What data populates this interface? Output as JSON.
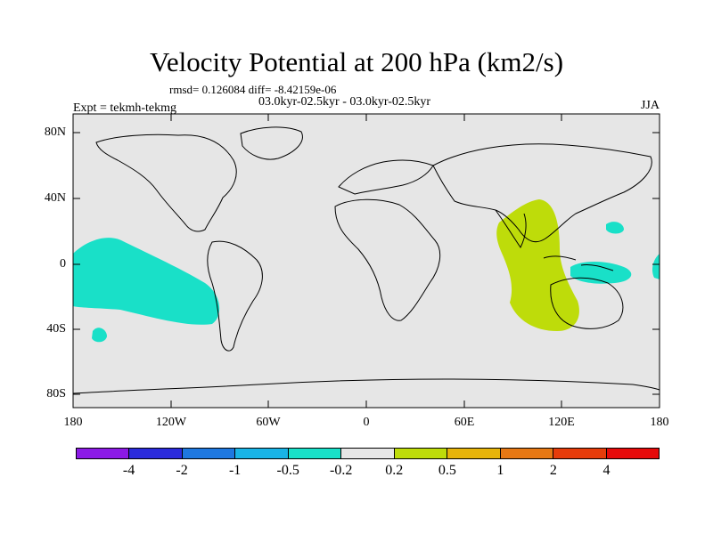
{
  "title": "Velocity Potential at 200 hPa (km2/s)",
  "stats": "rmsd= 0.126084 diff= -8.42159e-06",
  "experiments": "03.0kyr-02.5kyr - 03.0kyr-02.5kyr",
  "expt_label": "Expt = tekmh-tekmg",
  "season": "JJA",
  "lat_labels": [
    "80N",
    "40N",
    "0",
    "40S",
    "80S"
  ],
  "lon_labels": [
    "180",
    "120W",
    "60W",
    "0",
    "60E",
    "120E",
    "180"
  ],
  "colorbar": {
    "colors": [
      "#8c1ae6",
      "#2b2bdc",
      "#1e78e0",
      "#19b4e6",
      "#19e0c8",
      "#e6e6e6",
      "#bedc0a",
      "#e6b40a",
      "#e67814",
      "#e63c0a",
      "#e60a0a"
    ],
    "labels": [
      "-4",
      "-2",
      "-1",
      "-0.5",
      "-0.2",
      "0.2",
      "0.5",
      "1",
      "2",
      "4"
    ]
  },
  "map_colors": {
    "background": "#e6e6e6",
    "negative": "#19e0c8",
    "positive": "#bedc0a",
    "coast": "#000000"
  }
}
